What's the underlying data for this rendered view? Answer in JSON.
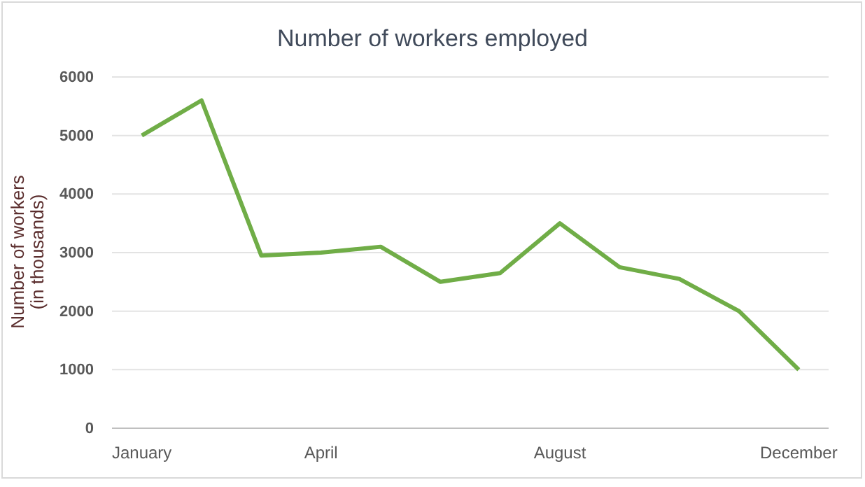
{
  "chart_data": {
    "type": "line",
    "title": "Number of workers employed",
    "ylabel": "Number of workers\n(in thousands)",
    "categories": [
      "January",
      null,
      null,
      "April",
      null,
      null,
      null,
      "August",
      null,
      null,
      null,
      "December"
    ],
    "series": [
      {
        "color": "#70ad47",
        "values": [
          5000,
          5600,
          2950,
          3000,
          3100,
          2500,
          2650,
          3500,
          2750,
          2550,
          2000,
          1000
        ]
      }
    ],
    "ylim": [
      0,
      6000
    ],
    "yticks": [
      0,
      1000,
      2000,
      3000,
      4000,
      5000,
      6000
    ],
    "grid": "y",
    "marker": "none",
    "line_style": "solid"
  }
}
